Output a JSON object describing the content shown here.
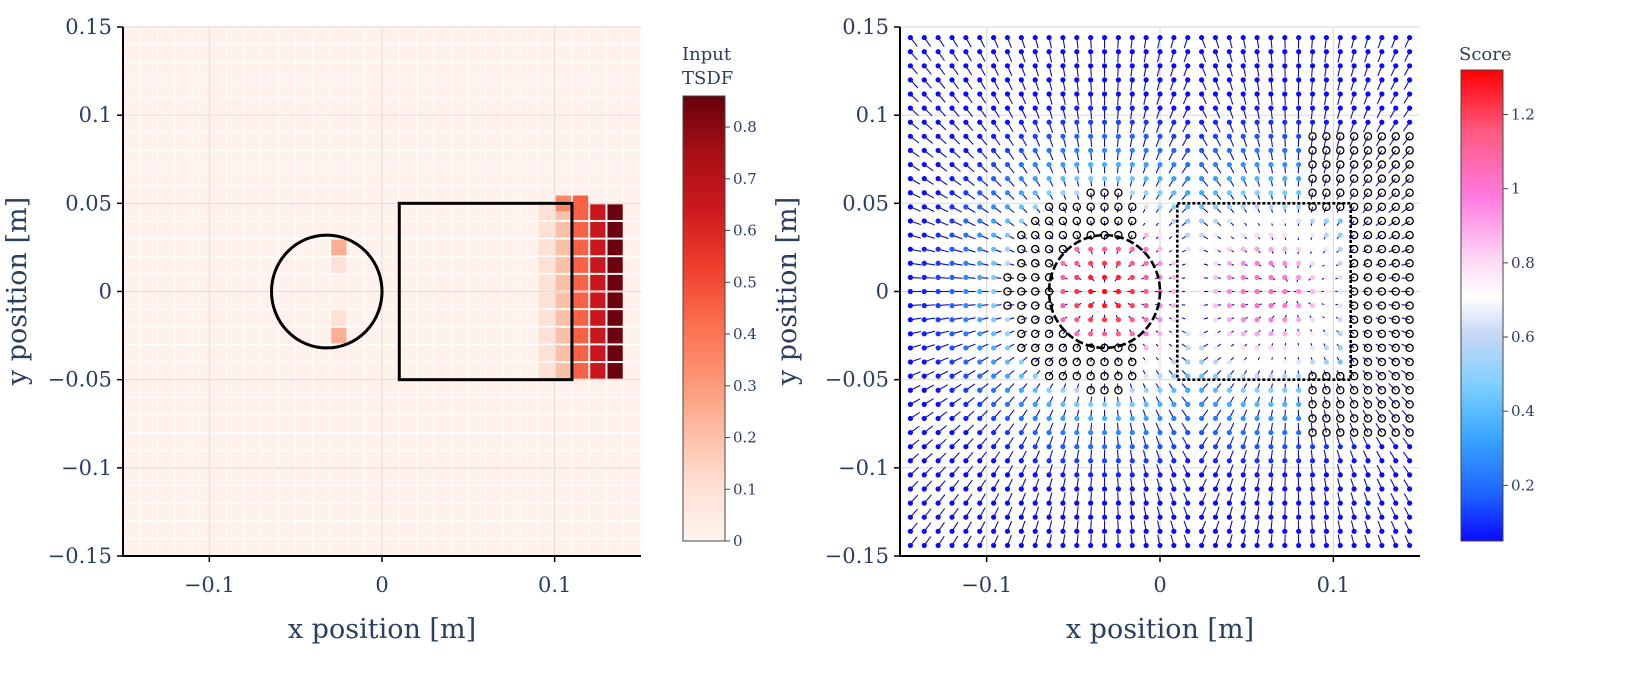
{
  "chart_data": [
    {
      "type": "heatmap",
      "title": "",
      "xlabel": "x position [m]",
      "ylabel": "y position [m]",
      "xlim": [
        -0.15,
        0.15
      ],
      "ylim": [
        -0.15,
        0.15
      ],
      "xticks": [
        -0.1,
        0,
        0.1
      ],
      "xtick_labels": [
        "−0.1",
        "0",
        "0.1"
      ],
      "yticks": [
        0.15,
        0.1,
        0.05,
        0,
        -0.05,
        -0.1,
        -0.15
      ],
      "ytick_labels": [
        "0.15",
        "0.1",
        "0.05",
        "0",
        "−0.05",
        "−0.1",
        "−0.15"
      ],
      "colorbar": {
        "title_lines": [
          "Input",
          "TSDF"
        ],
        "range": [
          0,
          0.86
        ],
        "ticks": [
          0,
          0.1,
          0.2,
          0.3,
          0.4,
          0.5,
          0.6,
          0.7,
          0.8
        ],
        "tick_labels": [
          "0",
          "0.1",
          "0.2",
          "0.3",
          "0.4",
          "0.5",
          "0.6",
          "0.7",
          "0.8"
        ],
        "colorscale": "Reds"
      },
      "grid_resolution": 0.01,
      "cells": [
        {
          "x": -0.025,
          "y": 0.025,
          "value": 0.25
        },
        {
          "x": -0.025,
          "y": 0.015,
          "value": 0.1
        },
        {
          "x": -0.025,
          "y": -0.015,
          "value": 0.1
        },
        {
          "x": -0.025,
          "y": -0.025,
          "value": 0.25
        },
        {
          "x": 0.095,
          "y": 0.045,
          "value": 0.1
        },
        {
          "x": 0.095,
          "y": 0.035,
          "value": 0.1
        },
        {
          "x": 0.095,
          "y": 0.025,
          "value": 0.1
        },
        {
          "x": 0.095,
          "y": 0.015,
          "value": 0.1
        },
        {
          "x": 0.095,
          "y": 0.005,
          "value": 0.1
        },
        {
          "x": 0.095,
          "y": -0.005,
          "value": 0.1
        },
        {
          "x": 0.095,
          "y": -0.015,
          "value": 0.1
        },
        {
          "x": 0.095,
          "y": -0.025,
          "value": 0.1
        },
        {
          "x": 0.095,
          "y": -0.035,
          "value": 0.1
        },
        {
          "x": 0.095,
          "y": -0.045,
          "value": 0.1
        },
        {
          "x": 0.105,
          "y": 0.045,
          "value": 0.2
        },
        {
          "x": 0.105,
          "y": 0.035,
          "value": 0.2
        },
        {
          "x": 0.105,
          "y": 0.025,
          "value": 0.2
        },
        {
          "x": 0.105,
          "y": 0.015,
          "value": 0.2
        },
        {
          "x": 0.105,
          "y": 0.005,
          "value": 0.2
        },
        {
          "x": 0.105,
          "y": -0.005,
          "value": 0.2
        },
        {
          "x": 0.105,
          "y": -0.015,
          "value": 0.2
        },
        {
          "x": 0.105,
          "y": -0.025,
          "value": 0.2
        },
        {
          "x": 0.105,
          "y": -0.035,
          "value": 0.2
        },
        {
          "x": 0.105,
          "y": -0.045,
          "value": 0.2
        },
        {
          "x": 0.115,
          "y": 0.045,
          "value": 0.45
        },
        {
          "x": 0.115,
          "y": 0.035,
          "value": 0.45
        },
        {
          "x": 0.115,
          "y": 0.025,
          "value": 0.45
        },
        {
          "x": 0.115,
          "y": 0.015,
          "value": 0.45
        },
        {
          "x": 0.115,
          "y": 0.005,
          "value": 0.45
        },
        {
          "x": 0.115,
          "y": -0.005,
          "value": 0.45
        },
        {
          "x": 0.115,
          "y": -0.015,
          "value": 0.45
        },
        {
          "x": 0.115,
          "y": -0.025,
          "value": 0.45
        },
        {
          "x": 0.115,
          "y": -0.035,
          "value": 0.45
        },
        {
          "x": 0.115,
          "y": -0.045,
          "value": 0.45
        },
        {
          "x": 0.125,
          "y": 0.045,
          "value": 0.65
        },
        {
          "x": 0.125,
          "y": 0.035,
          "value": 0.65
        },
        {
          "x": 0.125,
          "y": 0.025,
          "value": 0.65
        },
        {
          "x": 0.125,
          "y": 0.015,
          "value": 0.65
        },
        {
          "x": 0.125,
          "y": 0.005,
          "value": 0.65
        },
        {
          "x": 0.125,
          "y": -0.005,
          "value": 0.65
        },
        {
          "x": 0.125,
          "y": -0.015,
          "value": 0.65
        },
        {
          "x": 0.125,
          "y": -0.025,
          "value": 0.65
        },
        {
          "x": 0.125,
          "y": -0.035,
          "value": 0.65
        },
        {
          "x": 0.125,
          "y": -0.045,
          "value": 0.65
        },
        {
          "x": 0.135,
          "y": 0.045,
          "value": 0.85
        },
        {
          "x": 0.135,
          "y": 0.035,
          "value": 0.85
        },
        {
          "x": 0.135,
          "y": 0.025,
          "value": 0.85
        },
        {
          "x": 0.135,
          "y": 0.015,
          "value": 0.85
        },
        {
          "x": 0.135,
          "y": 0.005,
          "value": 0.85
        },
        {
          "x": 0.135,
          "y": -0.005,
          "value": 0.85
        },
        {
          "x": 0.135,
          "y": -0.015,
          "value": 0.85
        },
        {
          "x": 0.135,
          "y": -0.025,
          "value": 0.85
        },
        {
          "x": 0.135,
          "y": -0.035,
          "value": 0.85
        },
        {
          "x": 0.135,
          "y": -0.045,
          "value": 0.85
        },
        {
          "x": 0.105,
          "y": 0.05,
          "value": 0.35
        },
        {
          "x": 0.115,
          "y": 0.05,
          "value": 0.45
        }
      ],
      "background_value": 0.02,
      "shapes": [
        {
          "kind": "circle",
          "center": [
            -0.032,
            0.0
          ],
          "radius": 0.032,
          "style": "solid"
        },
        {
          "kind": "rectangle",
          "x0": 0.01,
          "y0": -0.05,
          "x1": 0.11,
          "y1": 0.05,
          "style": "solid"
        }
      ]
    },
    {
      "type": "scatter",
      "subtype": "quiver-score-field",
      "title": "",
      "xlabel": "x position [m]",
      "ylabel": "y position [m]",
      "xlim": [
        -0.15,
        0.15
      ],
      "ylim": [
        -0.15,
        0.15
      ],
      "xticks": [
        -0.1,
        0,
        0.1
      ],
      "xtick_labels": [
        "−0.1",
        "0",
        "0.1"
      ],
      "yticks": [
        0.15,
        0.1,
        0.05,
        0,
        -0.05,
        -0.1,
        -0.15
      ],
      "ytick_labels": [
        "0.15",
        "0.1",
        "0.05",
        "0",
        "−0.05",
        "−0.1",
        "−0.15"
      ],
      "colorbar": {
        "title": "Score",
        "range": [
          0.05,
          1.32
        ],
        "ticks": [
          0.2,
          0.4,
          0.6,
          0.8,
          1,
          1.2
        ],
        "tick_labels": [
          "0.2",
          "0.4",
          "0.6",
          "0.8",
          "1",
          "1.2"
        ],
        "colorscale": "Bluered-with-white-mid"
      },
      "grid_spacing": 0.008,
      "field_sinks": [
        {
          "name": "circle",
          "center": [
            -0.032,
            0.0
          ]
        },
        {
          "name": "rectangle",
          "center": [
            0.077,
            0.0
          ]
        }
      ],
      "high_score_regions": [
        {
          "name": "circle",
          "center": [
            -0.032,
            0.0
          ],
          "peak_score": 1.3
        },
        {
          "name": "rectangle",
          "center": [
            0.06,
            0.0
          ],
          "peak_score": 1.05
        }
      ],
      "shapes": [
        {
          "kind": "circle",
          "center": [
            -0.032,
            0.0
          ],
          "radius": 0.032,
          "style": "dashed"
        },
        {
          "kind": "rectangle",
          "x0": 0.01,
          "y0": -0.05,
          "x1": 0.11,
          "y1": 0.05,
          "style": "dotted"
        }
      ],
      "marked_clusters": [
        {
          "name": "circle-ring",
          "center": [
            -0.032,
            0.0
          ],
          "inner_radius": 0.03,
          "outer_radius": 0.058
        },
        {
          "name": "rectangle-right-side",
          "x_range": [
            0.085,
            0.148
          ],
          "y_range": [
            -0.085,
            0.09
          ]
        }
      ]
    }
  ]
}
